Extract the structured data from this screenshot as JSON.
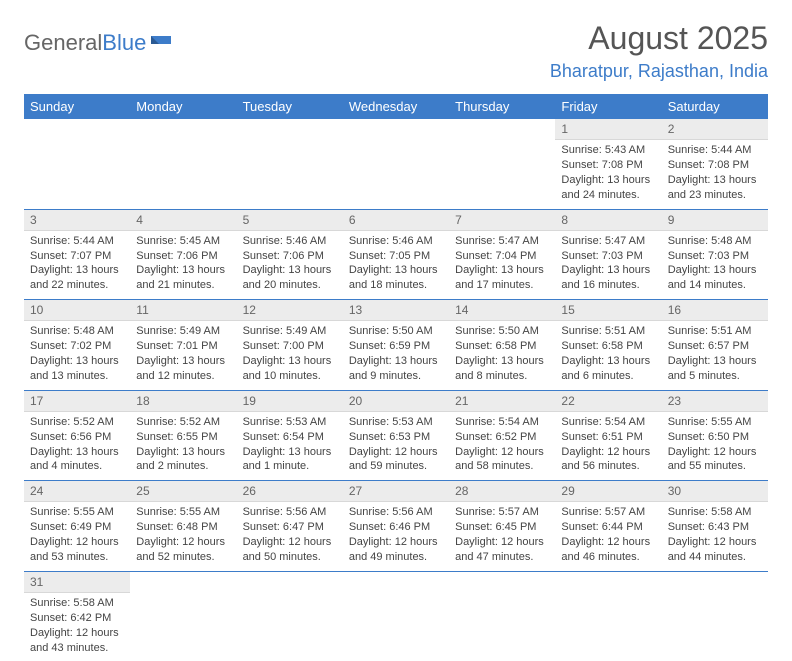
{
  "logo": {
    "text1": "General",
    "text2": "Blue"
  },
  "title": "August 2025",
  "location": "Bharatpur, Rajasthan, India",
  "colors": {
    "header_bg": "#3d7cc9",
    "header_text": "#ffffff",
    "daynum_bg": "#ececec",
    "row_border": "#3d7cc9",
    "body_text": "#444444",
    "logo_blue": "#3d7cc9",
    "logo_gray": "#666666"
  },
  "weekdays": [
    "Sunday",
    "Monday",
    "Tuesday",
    "Wednesday",
    "Thursday",
    "Friday",
    "Saturday"
  ],
  "weeks": [
    [
      null,
      null,
      null,
      null,
      null,
      {
        "n": "1",
        "sr": "5:43 AM",
        "ss": "7:08 PM",
        "dl": "13 hours and 24 minutes."
      },
      {
        "n": "2",
        "sr": "5:44 AM",
        "ss": "7:08 PM",
        "dl": "13 hours and 23 minutes."
      }
    ],
    [
      {
        "n": "3",
        "sr": "5:44 AM",
        "ss": "7:07 PM",
        "dl": "13 hours and 22 minutes."
      },
      {
        "n": "4",
        "sr": "5:45 AM",
        "ss": "7:06 PM",
        "dl": "13 hours and 21 minutes."
      },
      {
        "n": "5",
        "sr": "5:46 AM",
        "ss": "7:06 PM",
        "dl": "13 hours and 20 minutes."
      },
      {
        "n": "6",
        "sr": "5:46 AM",
        "ss": "7:05 PM",
        "dl": "13 hours and 18 minutes."
      },
      {
        "n": "7",
        "sr": "5:47 AM",
        "ss": "7:04 PM",
        "dl": "13 hours and 17 minutes."
      },
      {
        "n": "8",
        "sr": "5:47 AM",
        "ss": "7:03 PM",
        "dl": "13 hours and 16 minutes."
      },
      {
        "n": "9",
        "sr": "5:48 AM",
        "ss": "7:03 PM",
        "dl": "13 hours and 14 minutes."
      }
    ],
    [
      {
        "n": "10",
        "sr": "5:48 AM",
        "ss": "7:02 PM",
        "dl": "13 hours and 13 minutes."
      },
      {
        "n": "11",
        "sr": "5:49 AM",
        "ss": "7:01 PM",
        "dl": "13 hours and 12 minutes."
      },
      {
        "n": "12",
        "sr": "5:49 AM",
        "ss": "7:00 PM",
        "dl": "13 hours and 10 minutes."
      },
      {
        "n": "13",
        "sr": "5:50 AM",
        "ss": "6:59 PM",
        "dl": "13 hours and 9 minutes."
      },
      {
        "n": "14",
        "sr": "5:50 AM",
        "ss": "6:58 PM",
        "dl": "13 hours and 8 minutes."
      },
      {
        "n": "15",
        "sr": "5:51 AM",
        "ss": "6:58 PM",
        "dl": "13 hours and 6 minutes."
      },
      {
        "n": "16",
        "sr": "5:51 AM",
        "ss": "6:57 PM",
        "dl": "13 hours and 5 minutes."
      }
    ],
    [
      {
        "n": "17",
        "sr": "5:52 AM",
        "ss": "6:56 PM",
        "dl": "13 hours and 4 minutes."
      },
      {
        "n": "18",
        "sr": "5:52 AM",
        "ss": "6:55 PM",
        "dl": "13 hours and 2 minutes."
      },
      {
        "n": "19",
        "sr": "5:53 AM",
        "ss": "6:54 PM",
        "dl": "13 hours and 1 minute."
      },
      {
        "n": "20",
        "sr": "5:53 AM",
        "ss": "6:53 PM",
        "dl": "12 hours and 59 minutes."
      },
      {
        "n": "21",
        "sr": "5:54 AM",
        "ss": "6:52 PM",
        "dl": "12 hours and 58 minutes."
      },
      {
        "n": "22",
        "sr": "5:54 AM",
        "ss": "6:51 PM",
        "dl": "12 hours and 56 minutes."
      },
      {
        "n": "23",
        "sr": "5:55 AM",
        "ss": "6:50 PM",
        "dl": "12 hours and 55 minutes."
      }
    ],
    [
      {
        "n": "24",
        "sr": "5:55 AM",
        "ss": "6:49 PM",
        "dl": "12 hours and 53 minutes."
      },
      {
        "n": "25",
        "sr": "5:55 AM",
        "ss": "6:48 PM",
        "dl": "12 hours and 52 minutes."
      },
      {
        "n": "26",
        "sr": "5:56 AM",
        "ss": "6:47 PM",
        "dl": "12 hours and 50 minutes."
      },
      {
        "n": "27",
        "sr": "5:56 AM",
        "ss": "6:46 PM",
        "dl": "12 hours and 49 minutes."
      },
      {
        "n": "28",
        "sr": "5:57 AM",
        "ss": "6:45 PM",
        "dl": "12 hours and 47 minutes."
      },
      {
        "n": "29",
        "sr": "5:57 AM",
        "ss": "6:44 PM",
        "dl": "12 hours and 46 minutes."
      },
      {
        "n": "30",
        "sr": "5:58 AM",
        "ss": "6:43 PM",
        "dl": "12 hours and 44 minutes."
      }
    ],
    [
      {
        "n": "31",
        "sr": "5:58 AM",
        "ss": "6:42 PM",
        "dl": "12 hours and 43 minutes."
      },
      null,
      null,
      null,
      null,
      null,
      null
    ]
  ],
  "labels": {
    "sunrise": "Sunrise: ",
    "sunset": "Sunset: ",
    "daylight": "Daylight: "
  }
}
